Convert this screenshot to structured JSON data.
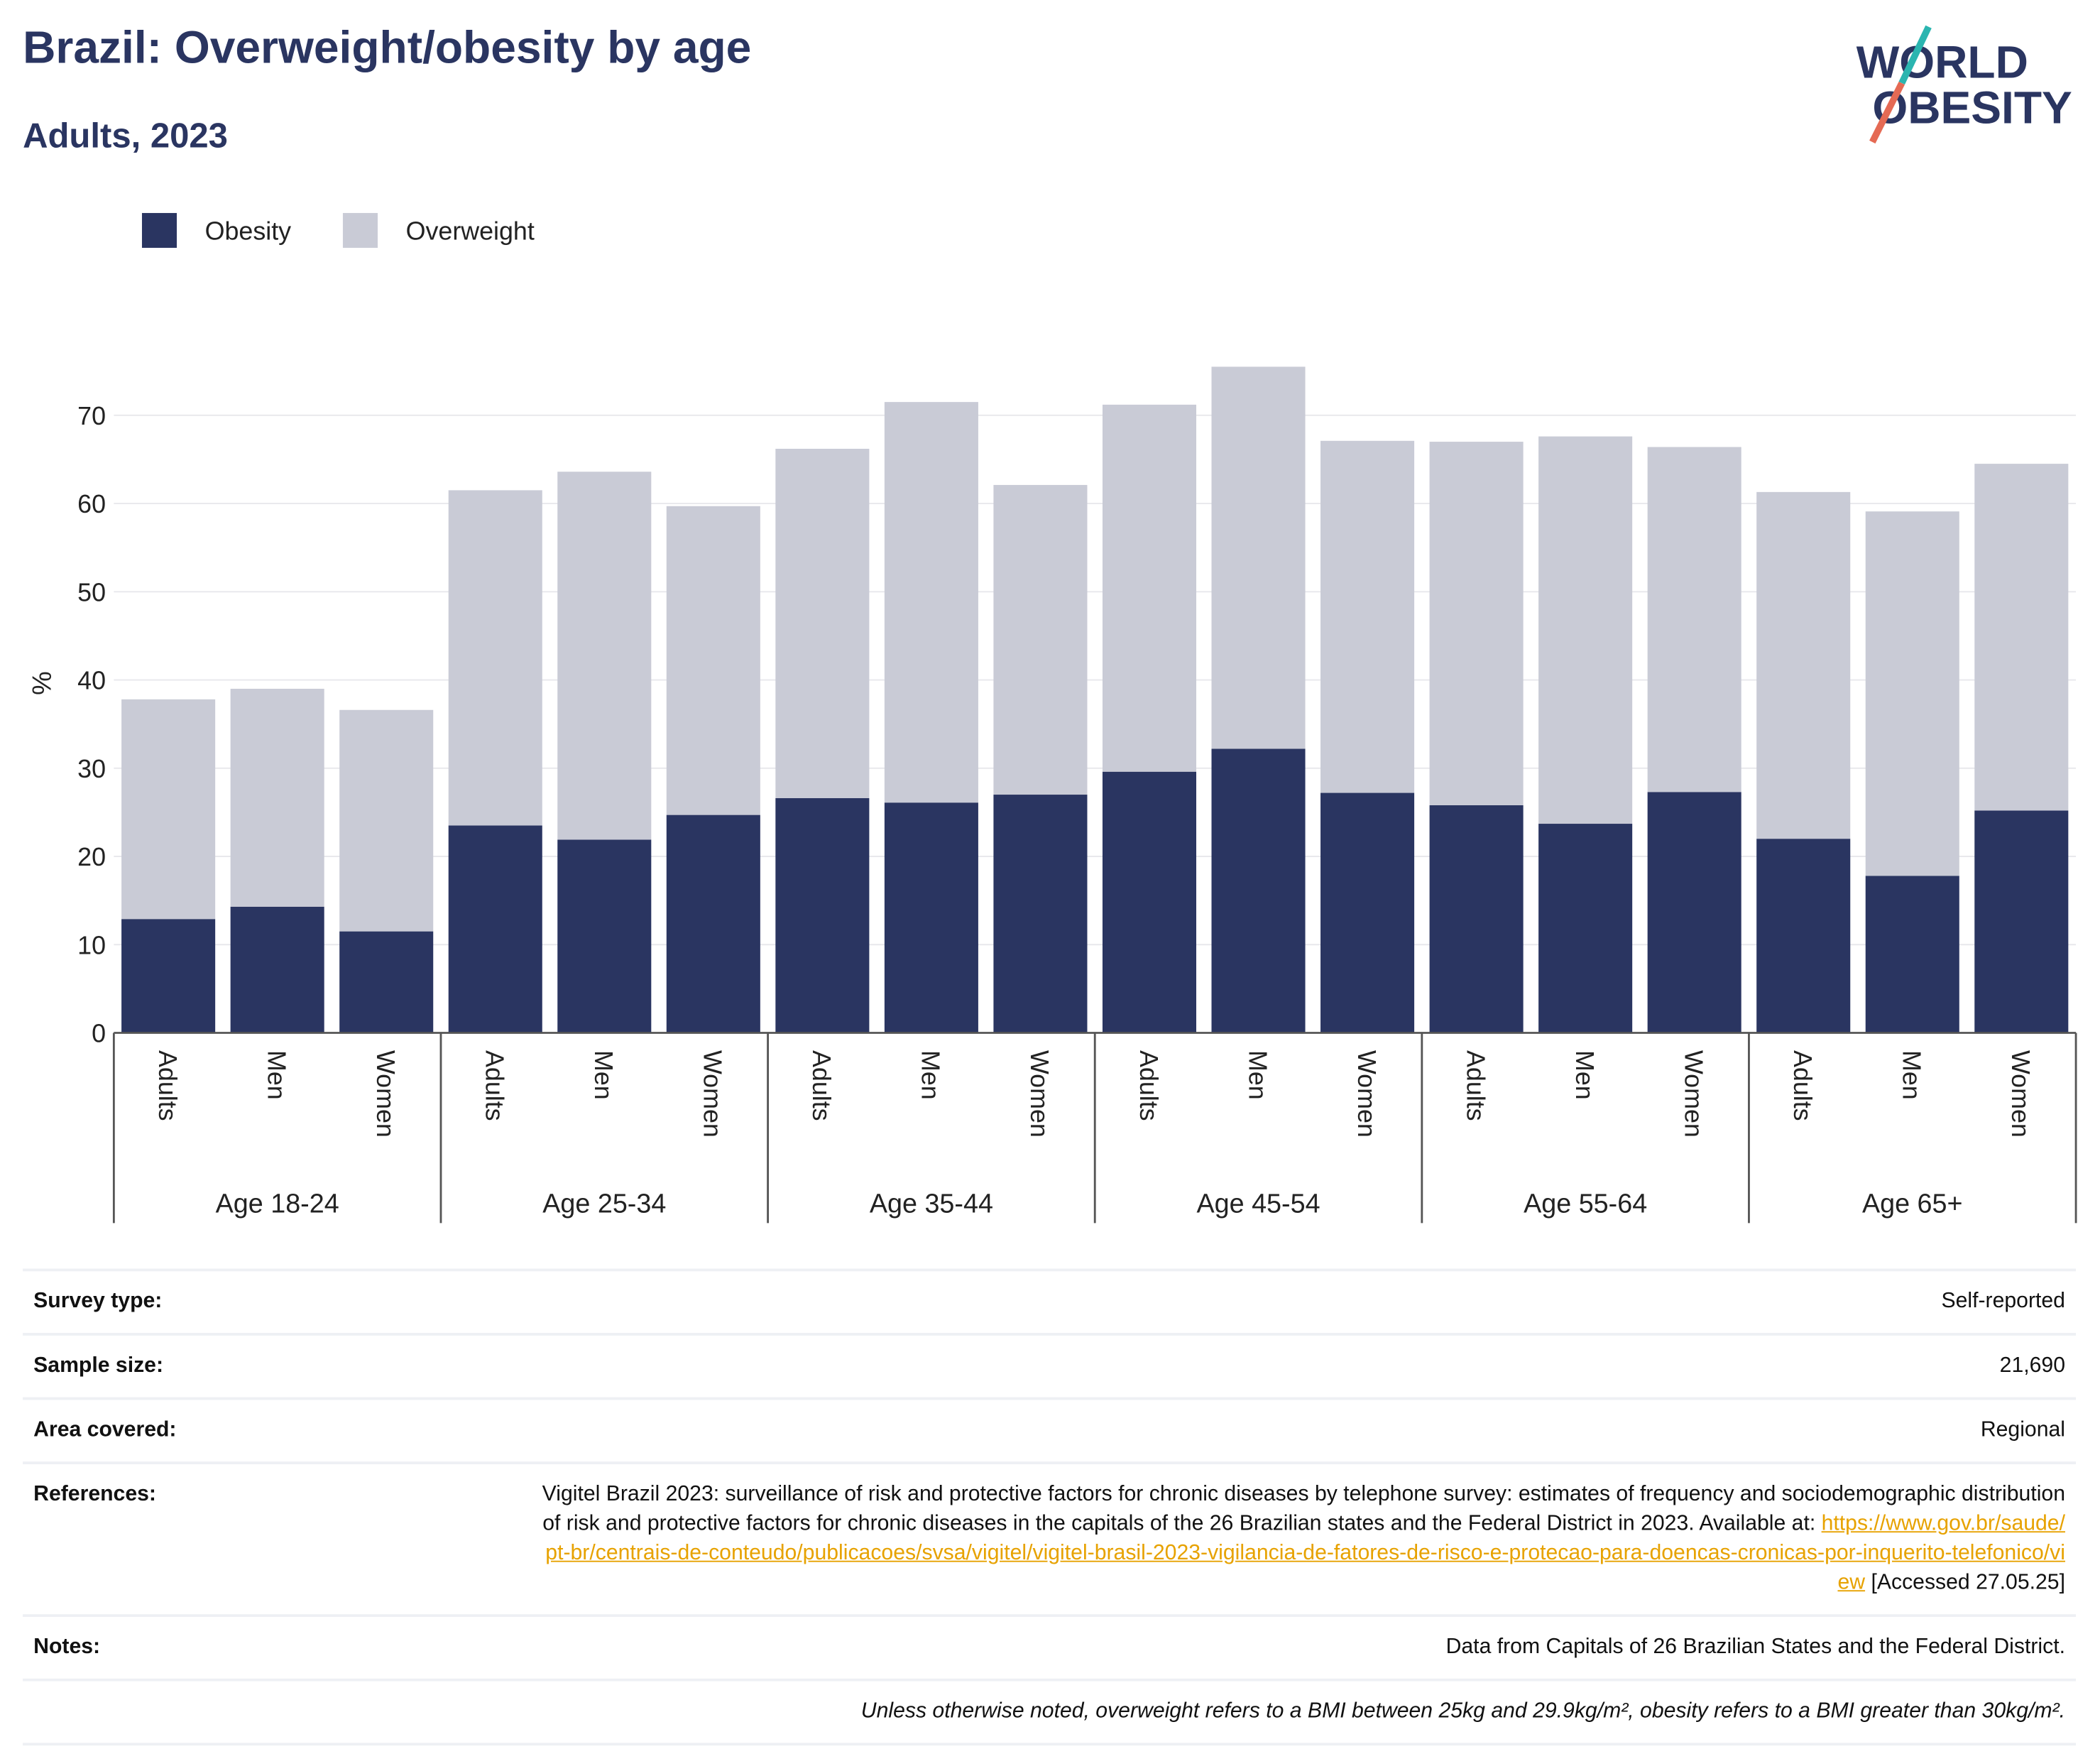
{
  "chart_data": {
    "type": "stacked-bar",
    "title": "Brazil: Overweight/obesity by age",
    "subtitle": "Adults, 2023",
    "ylabel": "%",
    "groups": [
      "Age 18-24",
      "Age 25-34",
      "Age 35-44",
      "Age 45-54",
      "Age 55-64",
      "Age 65+"
    ],
    "categories": [
      "Adults",
      "Men",
      "Women",
      "Adults",
      "Men",
      "Women",
      "Adults",
      "Men",
      "Women",
      "Adults",
      "Men",
      "Women",
      "Adults",
      "Men",
      "Women",
      "Adults",
      "Men",
      "Women"
    ],
    "series": [
      {
        "name": "Obesity",
        "color": "#2a3561",
        "values": [
          12.9,
          14.3,
          11.5,
          23.5,
          21.9,
          24.7,
          26.6,
          26.1,
          27.0,
          29.6,
          32.2,
          27.2,
          25.8,
          23.7,
          27.3,
          22.0,
          17.8,
          25.2
        ]
      },
      {
        "name": "Overweight",
        "color": "#c9cbd6",
        "values": [
          24.9,
          24.7,
          25.1,
          38.0,
          41.7,
          35.0,
          39.6,
          45.4,
          35.1,
          41.6,
          43.3,
          39.9,
          41.2,
          43.9,
          39.1,
          39.3,
          41.3,
          39.3
        ]
      }
    ],
    "ylim": [
      0,
      78
    ],
    "yticks": [
      0,
      10,
      20,
      30,
      40,
      50,
      60,
      70
    ],
    "grid": true,
    "legend": "top-left"
  },
  "logo": {
    "line1": "WORLD",
    "line2": "OBESITY"
  },
  "table": {
    "rows": [
      {
        "label": "Survey type:",
        "value": "Self-reported"
      },
      {
        "label": "Sample size:",
        "value": "21,690"
      },
      {
        "label": "Area covered:",
        "value": "Regional"
      },
      {
        "label": "References:",
        "value": "Vigitel Brazil 2023: surveillance of risk and protective factors for chronic diseases by telephone survey: estimates of frequency and sociodemographic distribution of risk and protective factors for chronic diseases in the capitals of the 26 Brazilian states and the Federal District in 2023. Available at: ",
        "link": "https://www.gov.br/saude/pt-br/centrais-de-conteudo/publicacoes/svsa/vigitel/vigitel-brasil-2023-vigilancia-de-fatores-de-risco-e-protecao-para-doencas-cronicas-por-inquerito-telefonico/view",
        "suffix": " [Accessed 27.05.25]"
      },
      {
        "label": "Notes:",
        "value": "Data from Capitals of 26 Brazilian States and the Federal District."
      }
    ],
    "footnote": "Unless otherwise noted, overweight refers to a BMI between 25kg and 29.9kg/m², obesity refers to a BMI greater than 30kg/m²."
  }
}
